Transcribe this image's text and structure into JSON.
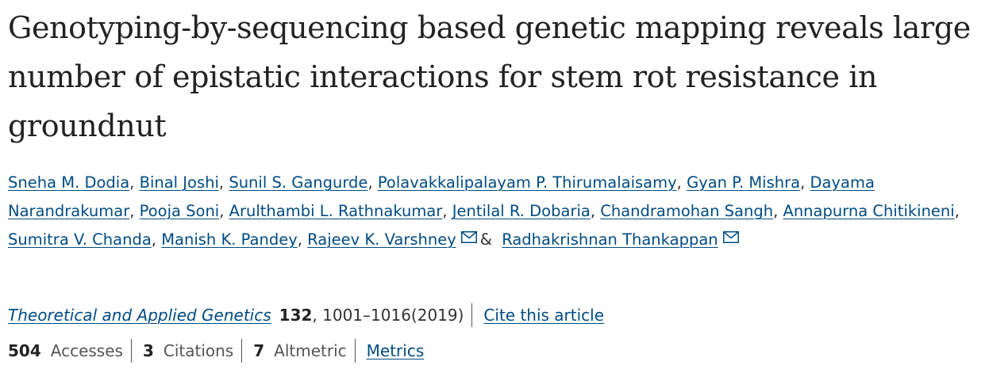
{
  "article": {
    "title": "Genotyping-by-sequencing based genetic mapping reveals large number of epistatic interactions for stem rot resistance in groundnut"
  },
  "authors": [
    {
      "name": "Sneha M. Dodia",
      "sep": ", "
    },
    {
      "name": "Binal Joshi",
      "sep": ", "
    },
    {
      "name": "Sunil S. Gangurde",
      "sep": ", "
    },
    {
      "name": "Polavakkalipalayam P. Thirumalaisamy",
      "sep": ", "
    },
    {
      "name": "Gyan P. Mishra",
      "sep": ", "
    },
    {
      "name": "Dayama Narandrakumar",
      "sep": ", "
    },
    {
      "name": "Pooja Soni",
      "sep": ", "
    },
    {
      "name": "Arulthambi L. Rathnakumar",
      "sep": ", "
    },
    {
      "name": "Jentilal R. Dobaria",
      "sep": ", "
    },
    {
      "name": "Chandramohan Sangh",
      "sep": ", "
    },
    {
      "name": "Annapurna Chitikineni",
      "sep": ", "
    },
    {
      "name": "Sumitra V. Chanda",
      "sep": ", "
    },
    {
      "name": "Manish K. Pandey",
      "sep": ", "
    },
    {
      "name": "Rajeev K. Varshney",
      "sep": ""
    },
    {
      "name": "Radhakrishnan Thankappan",
      "sep": ""
    }
  ],
  "author_conjunction": "&",
  "citation": {
    "journal": "Theoretical and Applied Genetics",
    "volume": "132",
    "pages_year": ", 1001–1016(2019)",
    "cite_link": "Cite this article"
  },
  "metrics": {
    "accesses_count": "504",
    "accesses_label": "Accesses",
    "citations_count": "3",
    "citations_label": "Citations",
    "altmetric_count": "7",
    "altmetric_label": "Altmetric",
    "metrics_link": "Metrics"
  },
  "icons": {
    "corresponding_author": "envelope-icon"
  },
  "colors": {
    "link": "#004b83",
    "text": "#222222",
    "muted": "#555555"
  }
}
